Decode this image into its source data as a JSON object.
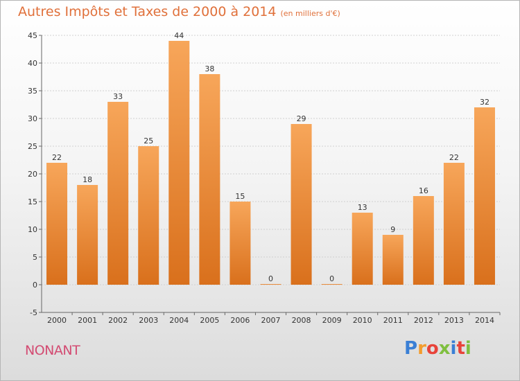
{
  "header": {
    "title": "Autres Impôts et Taxes de 2000 à 2014",
    "unit": "(en milliers d'€)"
  },
  "footer": {
    "commune": "NONANT",
    "logo": "Proxiti",
    "logo_colors": [
      "#3a7fd5",
      "#f39c2d",
      "#e8433a",
      "#7fbf3f",
      "#3a7fd5",
      "#e8433a",
      "#7fbf3f"
    ]
  },
  "chart_data": {
    "type": "bar",
    "title": "Autres Impôts et Taxes de 2000 à 2014",
    "subtitle": "(en milliers d'€)",
    "categories": [
      "2000",
      "2001",
      "2002",
      "2003",
      "2004",
      "2005",
      "2006",
      "2007",
      "2008",
      "2009",
      "2010",
      "2011",
      "2012",
      "2013",
      "2014"
    ],
    "values": [
      22,
      18,
      33,
      25,
      44,
      38,
      15,
      0,
      29,
      0,
      13,
      9,
      16,
      22,
      32
    ],
    "ylim": [
      -5,
      45
    ],
    "yticks": [
      -5,
      0,
      5,
      10,
      15,
      20,
      25,
      30,
      35,
      40,
      45
    ],
    "grid": true,
    "bar_color_top": "#f7a65a",
    "bar_color_bottom": "#d9701c"
  }
}
